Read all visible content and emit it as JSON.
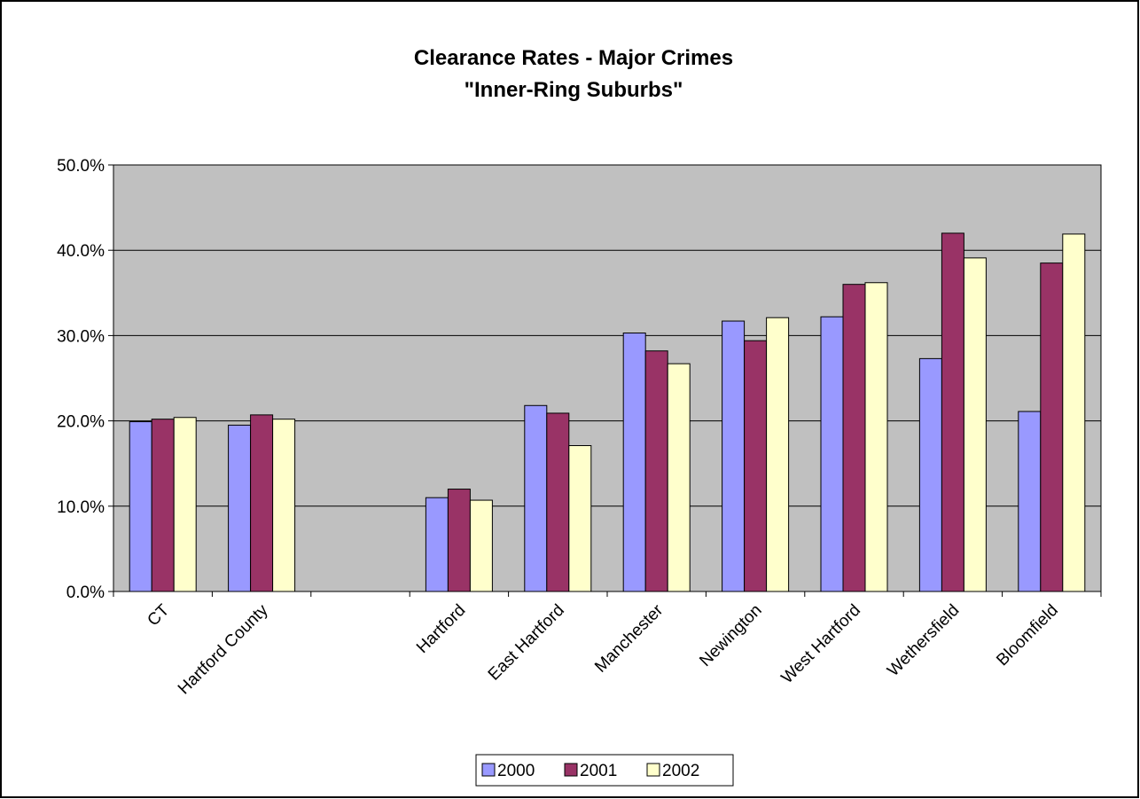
{
  "chart_data": {
    "type": "bar",
    "title": "Clearance Rates - Major Crimes",
    "subtitle": "\"Inner-Ring Suburbs\"",
    "xlabel": "",
    "ylabel": "",
    "ylim": [
      0,
      0.5
    ],
    "yticks": [
      0,
      0.1,
      0.2,
      0.3,
      0.4,
      0.5
    ],
    "ytick_labels": [
      "0.0%",
      "10.0%",
      "20.0%",
      "30.0%",
      "40.0%",
      "50.0%"
    ],
    "grid": true,
    "legend_position": "bottom",
    "categories": [
      "CT",
      "Hartford County",
      "",
      "Hartford",
      "East Hartford",
      "Manchester",
      "Newington",
      "West Hartford",
      "Wethersfield",
      "Bloomfield"
    ],
    "series": [
      {
        "name": "2000",
        "color": "#9999ff",
        "values": [
          0.199,
          0.195,
          null,
          0.11,
          0.218,
          0.303,
          0.317,
          0.322,
          0.273,
          0.211
        ]
      },
      {
        "name": "2001",
        "color": "#993366",
        "values": [
          0.202,
          0.207,
          null,
          0.12,
          0.209,
          0.282,
          0.294,
          0.36,
          0.42,
          0.385
        ]
      },
      {
        "name": "2002",
        "color": "#ffffcc",
        "values": [
          0.204,
          0.202,
          null,
          0.107,
          0.171,
          0.267,
          0.321,
          0.362,
          0.391,
          0.419
        ]
      }
    ]
  },
  "colors": {
    "plot_background": "#c0c0c0",
    "gridline": "#000000",
    "bar_outline": "#000000",
    "frame": "#000000"
  }
}
